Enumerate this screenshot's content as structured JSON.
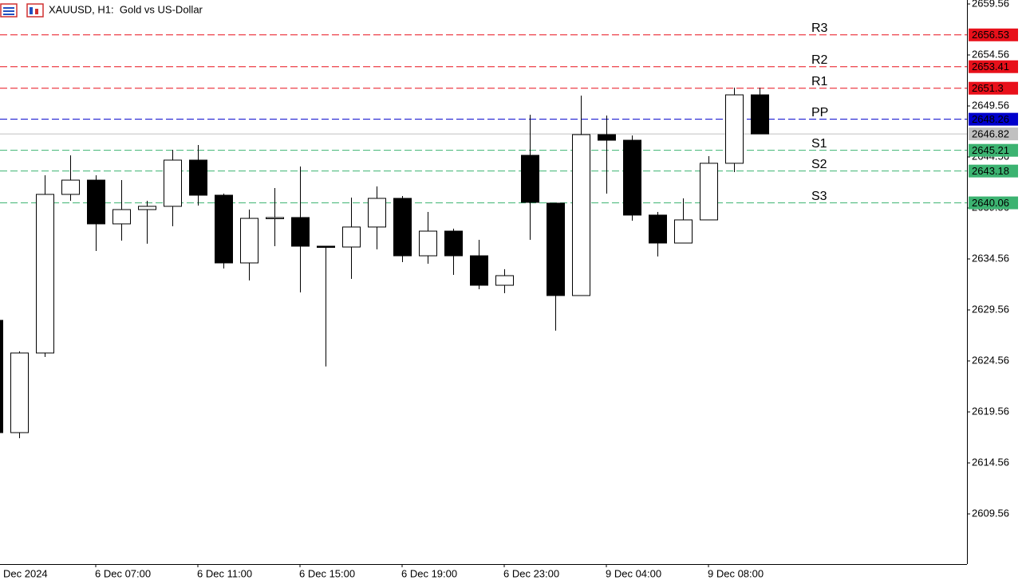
{
  "chart_data": {
    "type": "candlestick",
    "title": "XAUUSD, H1:  Gold vs US-Dollar",
    "categories": [
      "Dec 2024",
      null,
      null,
      null,
      "6 Dec 07:00",
      null,
      null,
      null,
      "6 Dec 11:00",
      null,
      null,
      null,
      "6 Dec 15:00",
      null,
      null,
      null,
      "6 Dec 19:00",
      null,
      null,
      null,
      "6 Dec 23:00",
      null,
      null,
      null,
      "9 Dec 04:00",
      null,
      null,
      null,
      "9 Dec 08:00",
      null,
      null
    ],
    "open": [
      2628.54,
      2617.53,
      2625.34,
      2640.89,
      2642.29,
      2638.0,
      2639.4,
      2639.72,
      2644.25,
      2640.81,
      2634.17,
      2638.54,
      2638.62,
      2635.81,
      2635.73,
      2637.69,
      2640.5,
      2634.87,
      2637.29,
      2634.87,
      2631.98,
      2644.72,
      2640.03,
      2630.97,
      2646.75,
      2646.2,
      2638.86,
      2636.12,
      2638.39,
      2643.94,
      2650.65
    ],
    "high": [
      2628.54,
      2625.5,
      2642.76,
      2644.72,
      2642.76,
      2642.29,
      2640.26,
      2645.26,
      2645.73,
      2640.97,
      2639.4,
      2641.51,
      2643.62,
      2635.81,
      2640.58,
      2641.67,
      2640.73,
      2639.17,
      2637.53,
      2636.44,
      2633.55,
      2648.7,
      2640.03,
      2650.58,
      2648.62,
      2646.67,
      2639.17,
      2640.5,
      2644.64,
      2651.36,
      2651.36
    ],
    "low": [
      2617.53,
      2616.98,
      2624.95,
      2640.26,
      2635.34,
      2636.36,
      2636.05,
      2637.76,
      2639.79,
      2633.62,
      2632.45,
      2635.81,
      2631.28,
      2624.01,
      2632.61,
      2635.5,
      2634.25,
      2634.09,
      2633.0,
      2631.59,
      2631.2,
      2636.44,
      2627.53,
      2630.97,
      2640.97,
      2638.31,
      2634.8,
      2636.12,
      2638.39,
      2643.08,
      2646.82
    ],
    "close": [
      2617.53,
      2625.34,
      2640.89,
      2642.29,
      2638.0,
      2639.4,
      2639.72,
      2644.25,
      2640.81,
      2634.17,
      2638.54,
      2638.62,
      2635.81,
      2635.73,
      2637.69,
      2640.5,
      2634.87,
      2637.29,
      2634.87,
      2631.98,
      2632.92,
      2640.11,
      2630.97,
      2646.75,
      2646.2,
      2638.86,
      2636.12,
      2638.39,
      2643.94,
      2650.65,
      2646.82
    ],
    "up_color": "#ffffff",
    "down_color": "#000000",
    "ylim": [
      2604.64,
      2659.95
    ],
    "yticks": [
      2659.56,
      2654.56,
      2649.56,
      2644.56,
      2639.56,
      2634.56,
      2629.56,
      2624.56,
      2619.56,
      2614.56,
      2609.56
    ],
    "levels": [
      {
        "name": "R3",
        "value": 2656.53,
        "color": "#e8101a"
      },
      {
        "name": "R2",
        "value": 2653.41,
        "color": "#e8101a"
      },
      {
        "name": "R1",
        "value": 2651.3,
        "color": "#e8101a"
      },
      {
        "name": "PP",
        "value": 2648.26,
        "color": "#0000cc"
      },
      {
        "name": "S1",
        "value": 2645.21,
        "color": "#3cb371"
      },
      {
        "name": "S2",
        "value": 2643.18,
        "color": "#3cb371"
      },
      {
        "name": "S3",
        "value": 2640.06,
        "color": "#3cb371"
      }
    ],
    "last_price": {
      "value": 2646.82,
      "color": "#c0c0c0"
    }
  }
}
